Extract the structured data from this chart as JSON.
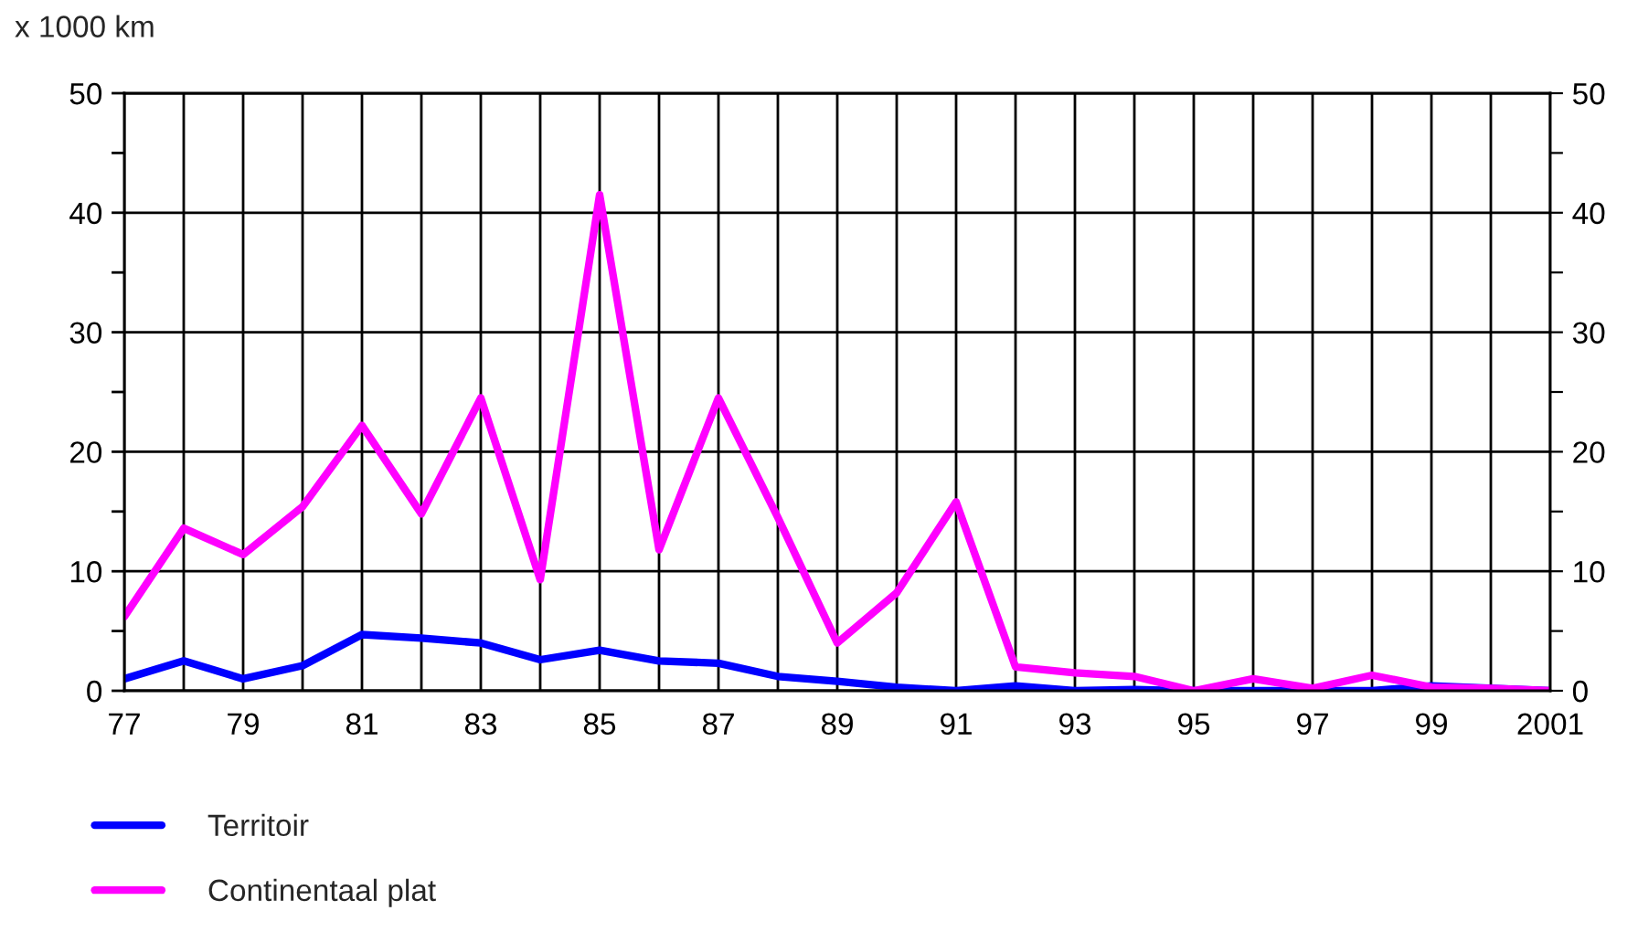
{
  "chart_data": {
    "type": "line",
    "ylabel": "x 1000 km",
    "x": [
      "1977",
      "1978",
      "1979",
      "1980",
      "1981",
      "1982",
      "1983",
      "1984",
      "1985",
      "1986",
      "1987",
      "1988",
      "1989",
      "1990",
      "1991",
      "1992",
      "1993",
      "1994",
      "1995",
      "1996",
      "1997",
      "1998",
      "1999",
      "2000",
      "2001"
    ],
    "series": [
      {
        "name": "Territoir",
        "color": "#0000ff",
        "values": [
          1.0,
          2.5,
          1.0,
          2.1,
          4.7,
          4.4,
          4.0,
          2.6,
          3.4,
          2.5,
          2.3,
          1.2,
          0.8,
          0.3,
          0,
          0.4,
          0,
          0.1,
          0,
          0,
          0,
          0,
          0.4,
          null,
          0
        ]
      },
      {
        "name": "Continentaal plat",
        "color": "#ff00ff",
        "values": [
          6.2,
          13.6,
          11.4,
          15.4,
          22.2,
          14.8,
          24.5,
          9.3,
          41.5,
          11.8,
          24.5,
          14.5,
          4.0,
          8.2,
          15.8,
          2.0,
          1.5,
          1.2,
          0,
          1.0,
          0.2,
          1.3,
          0.3,
          0.2,
          0
        ]
      }
    ],
    "xlim": [
      "1977",
      "2001"
    ],
    "xticks": [
      {
        "value": "1977",
        "label": "77"
      },
      {
        "value": "1978",
        "label": null
      },
      {
        "value": "1979",
        "label": "79"
      },
      {
        "value": "1980",
        "label": null
      },
      {
        "value": "1981",
        "label": "81"
      },
      {
        "value": "1982",
        "label": null
      },
      {
        "value": "1983",
        "label": "83"
      },
      {
        "value": "1984",
        "label": null
      },
      {
        "value": "1985",
        "label": "85"
      },
      {
        "value": "1986",
        "label": null
      },
      {
        "value": "1987",
        "label": "87"
      },
      {
        "value": "1988",
        "label": null
      },
      {
        "value": "1989",
        "label": "89"
      },
      {
        "value": "1990",
        "label": null
      },
      {
        "value": "1991",
        "label": "91"
      },
      {
        "value": "1992",
        "label": null
      },
      {
        "value": "1993",
        "label": "93"
      },
      {
        "value": "1994",
        "label": null
      },
      {
        "value": "1995",
        "label": "95"
      },
      {
        "value": "1996",
        "label": null
      },
      {
        "value": "1997",
        "label": "97"
      },
      {
        "value": "1998",
        "label": null
      },
      {
        "value": "1999",
        "label": "99"
      },
      {
        "value": "2000",
        "label": null
      },
      {
        "value": "2001",
        "label": "2001"
      }
    ],
    "ylim": [
      0,
      50
    ],
    "yticks": [
      0,
      {
        "value": 5,
        "label": null
      },
      10,
      {
        "value": 15,
        "label": null
      },
      20,
      {
        "value": 25,
        "label": null
      },
      30,
      {
        "value": 35,
        "label": null
      },
      40,
      {
        "value": 45,
        "label": null
      },
      50
    ],
    "y2lim": [
      0,
      50
    ],
    "y2ticks": [
      0,
      {
        "value": 5,
        "label": null
      },
      10,
      {
        "value": 15,
        "label": null
      },
      20,
      {
        "value": 25,
        "label": null
      },
      30,
      {
        "value": 35,
        "label": null
      },
      40,
      {
        "value": 45,
        "label": null
      },
      50
    ],
    "grid": true,
    "legend": "bottom left",
    "marker": "none",
    "line_style": "solid"
  }
}
